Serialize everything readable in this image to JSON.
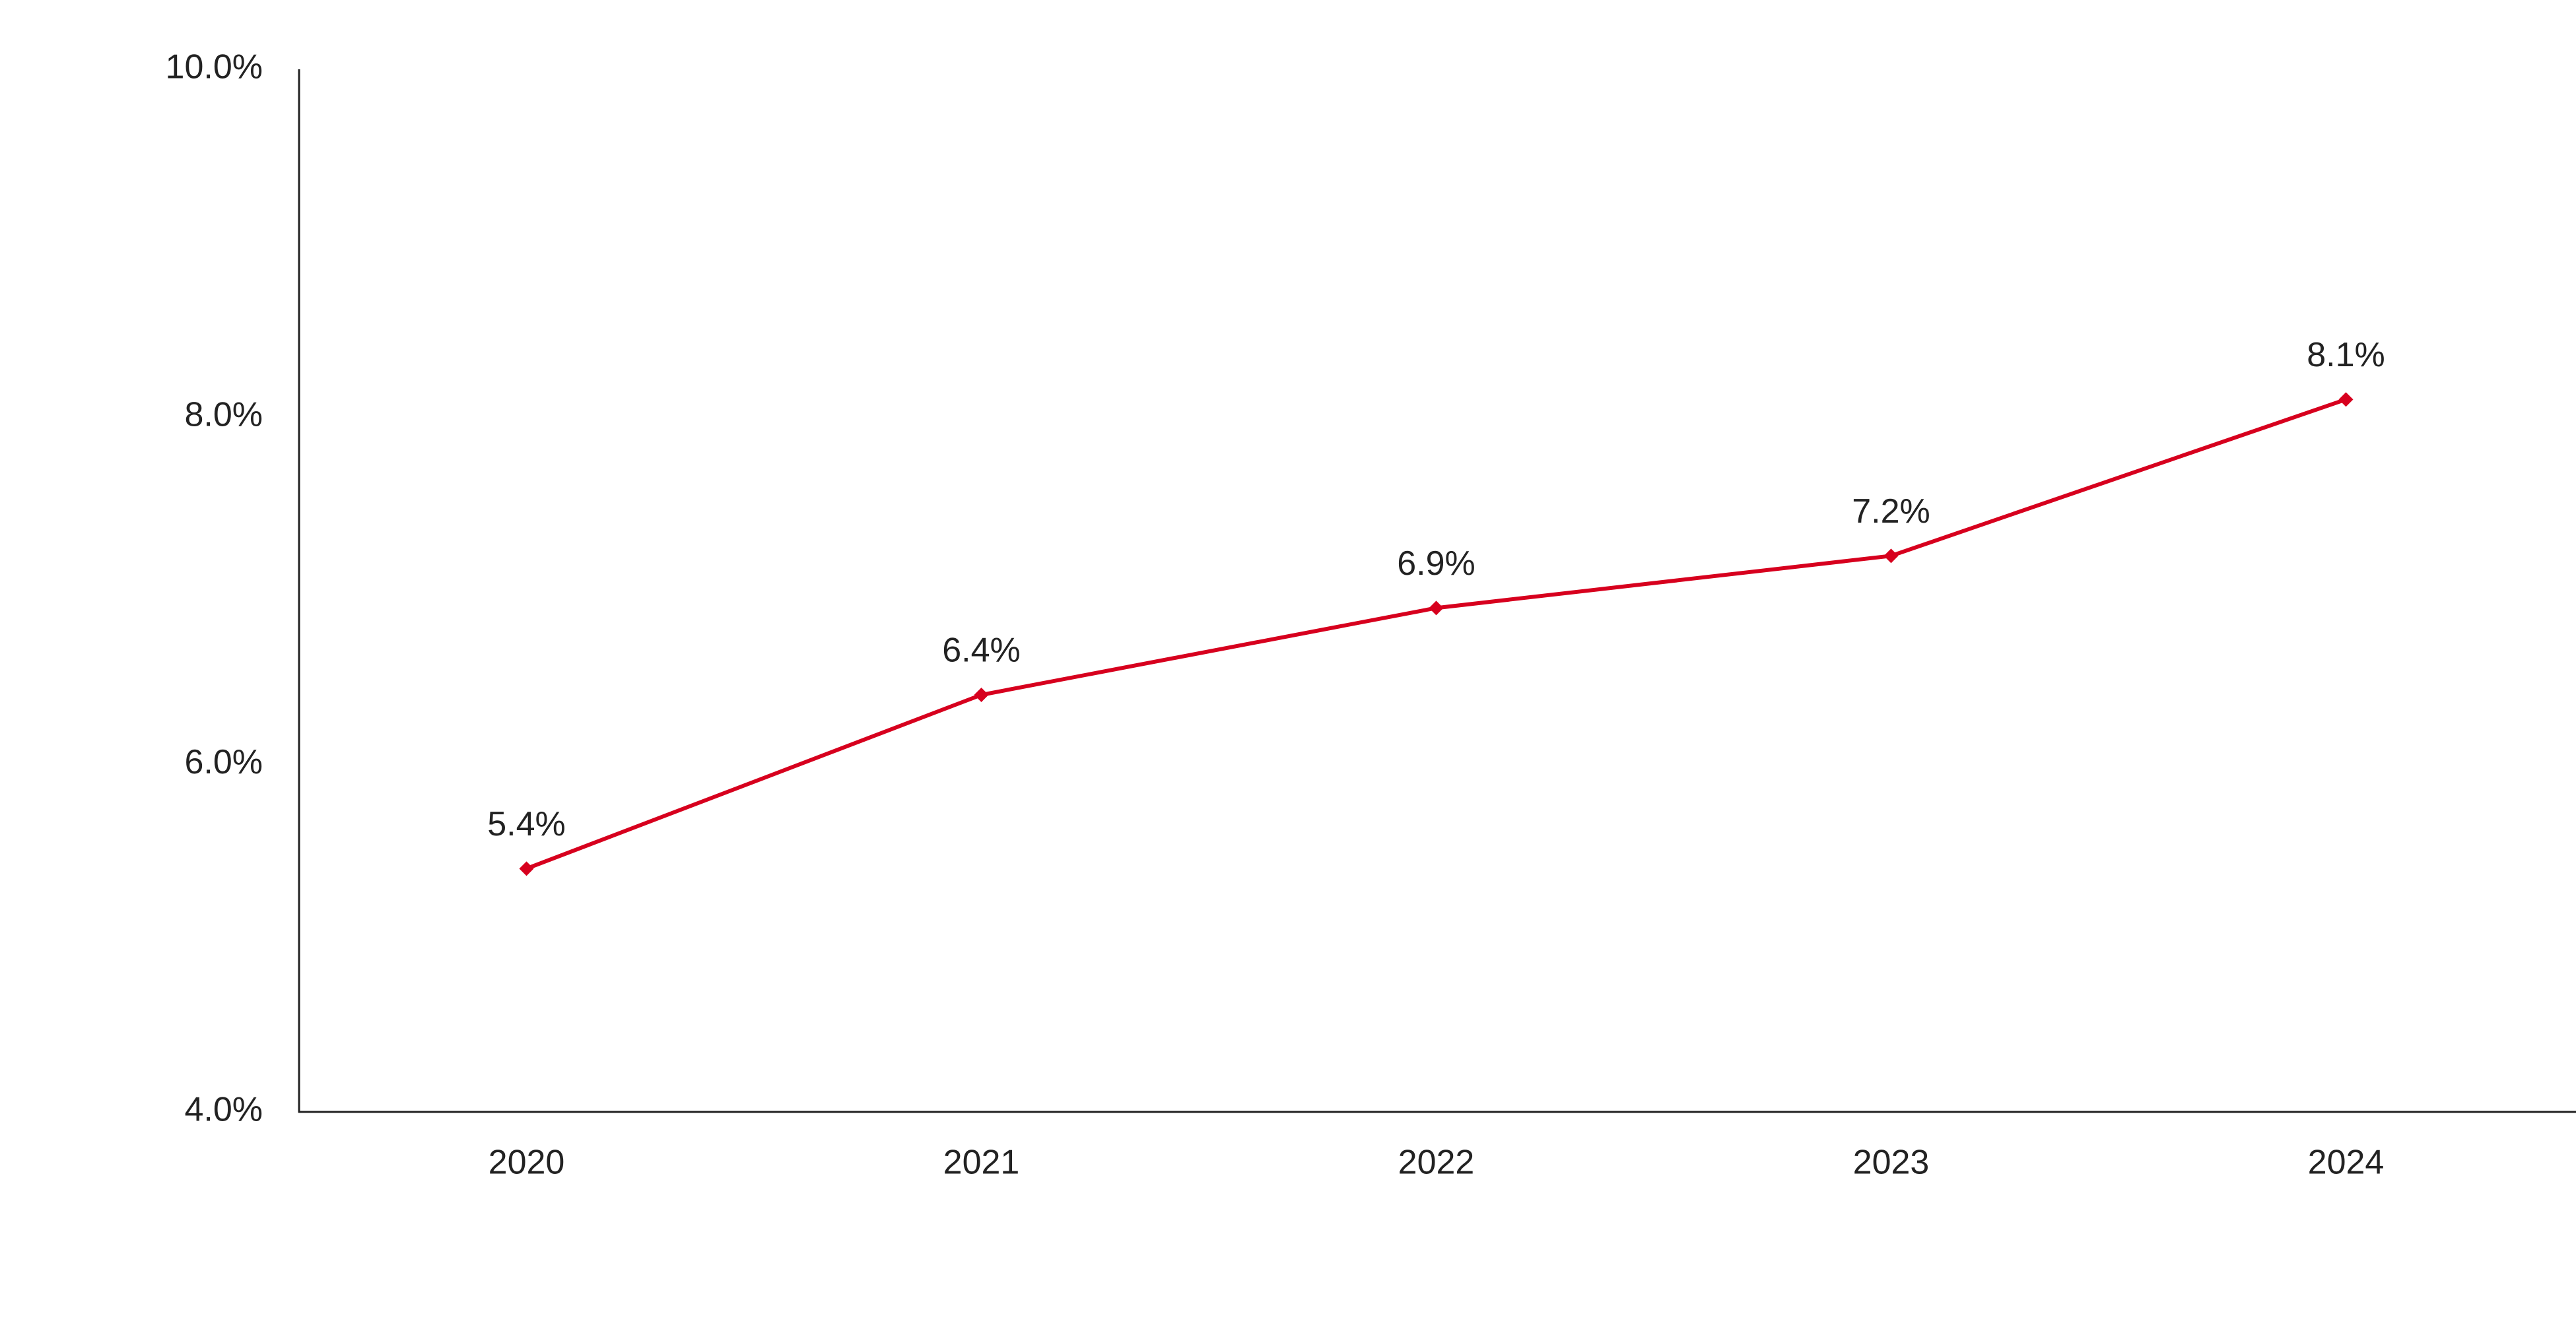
{
  "chart_data": {
    "type": "line",
    "categories": [
      "2020",
      "2021",
      "2022",
      "2023",
      "2024"
    ],
    "values": [
      5.4,
      6.4,
      6.9,
      7.2,
      8.1
    ],
    "value_labels": [
      "5.4%",
      "6.4%",
      "6.9%",
      "7.2%",
      "8.1%"
    ],
    "color": "#d7001e",
    "ylim": [
      4,
      10
    ],
    "yticks": [
      {
        "value": 4,
        "label": "4.0%"
      },
      {
        "value": 6,
        "label": "6.0%"
      },
      {
        "value": 8,
        "label": "8.0%"
      },
      {
        "value": 10,
        "label": "10.0%"
      }
    ],
    "grid": false
  }
}
